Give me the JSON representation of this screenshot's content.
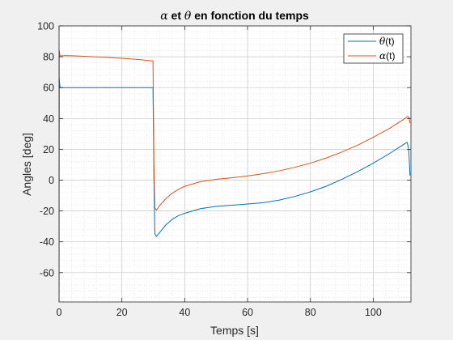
{
  "chart_data": {
    "type": "line",
    "title": {
      "alpha_symbol": "α",
      "middle": " et ",
      "theta_symbol": "θ",
      "rest": " en fonction du temps"
    },
    "xlabel": "Temps [s]",
    "ylabel": "Angles [deg]",
    "xlim": [
      0,
      112
    ],
    "ylim": [
      -79,
      100
    ],
    "xticks": [
      0,
      20,
      40,
      60,
      80,
      100
    ],
    "yticks": [
      -60,
      -40,
      -20,
      0,
      20,
      40,
      60,
      80,
      100
    ],
    "grid": true,
    "minor_grid": true,
    "legend_position": "top-right",
    "series": [
      {
        "name": "theta",
        "legend_symbol": "θ",
        "legend_suffix": "(t)",
        "color": "#0072bd",
        "points": [
          [
            0,
            -79
          ],
          [
            0.05,
            66
          ],
          [
            0.3,
            60
          ],
          [
            5,
            60
          ],
          [
            10,
            60
          ],
          [
            15,
            60
          ],
          [
            20,
            60
          ],
          [
            25,
            60
          ],
          [
            29.9,
            60
          ],
          [
            30.2,
            0
          ],
          [
            30.5,
            -35
          ],
          [
            31,
            -36.5
          ],
          [
            32,
            -34
          ],
          [
            34,
            -29
          ],
          [
            36,
            -25.5
          ],
          [
            38,
            -23
          ],
          [
            40,
            -21.5
          ],
          [
            45,
            -18.5
          ],
          [
            50,
            -17
          ],
          [
            55,
            -16.3
          ],
          [
            60,
            -15.5
          ],
          [
            65,
            -14.6
          ],
          [
            70,
            -13
          ],
          [
            75,
            -10.6
          ],
          [
            80,
            -7.6
          ],
          [
            85,
            -4
          ],
          [
            90,
            0.5
          ],
          [
            95,
            5.5
          ],
          [
            100,
            11
          ],
          [
            105,
            17
          ],
          [
            110,
            23.5
          ],
          [
            110.8,
            24.5
          ],
          [
            111.3,
            20
          ],
          [
            111.7,
            3
          ]
        ]
      },
      {
        "name": "alpha",
        "legend_symbol": "α",
        "legend_suffix": "(t)",
        "color": "#d95319",
        "points": [
          [
            0,
            -10
          ],
          [
            0.05,
            84
          ],
          [
            0.3,
            80.5
          ],
          [
            2,
            80.8
          ],
          [
            5,
            80.6
          ],
          [
            10,
            80.1
          ],
          [
            15,
            79.6
          ],
          [
            20,
            79.0
          ],
          [
            25,
            78.3
          ],
          [
            29.9,
            77.3
          ],
          [
            30.2,
            10
          ],
          [
            30.5,
            -18
          ],
          [
            31,
            -19.5
          ],
          [
            32,
            -16.5
          ],
          [
            34,
            -12
          ],
          [
            36,
            -8.5
          ],
          [
            38,
            -6
          ],
          [
            40,
            -4
          ],
          [
            45,
            -1
          ],
          [
            50,
            0.5
          ],
          [
            55,
            1.5
          ],
          [
            60,
            2.7
          ],
          [
            65,
            4.2
          ],
          [
            70,
            6
          ],
          [
            75,
            8.3
          ],
          [
            80,
            11
          ],
          [
            85,
            14.3
          ],
          [
            90,
            18.2
          ],
          [
            95,
            22.6
          ],
          [
            100,
            27.8
          ],
          [
            105,
            33.3
          ],
          [
            110,
            39.8
          ],
          [
            110.8,
            41.2
          ],
          [
            111.3,
            41
          ],
          [
            111.7,
            37
          ]
        ]
      }
    ]
  }
}
